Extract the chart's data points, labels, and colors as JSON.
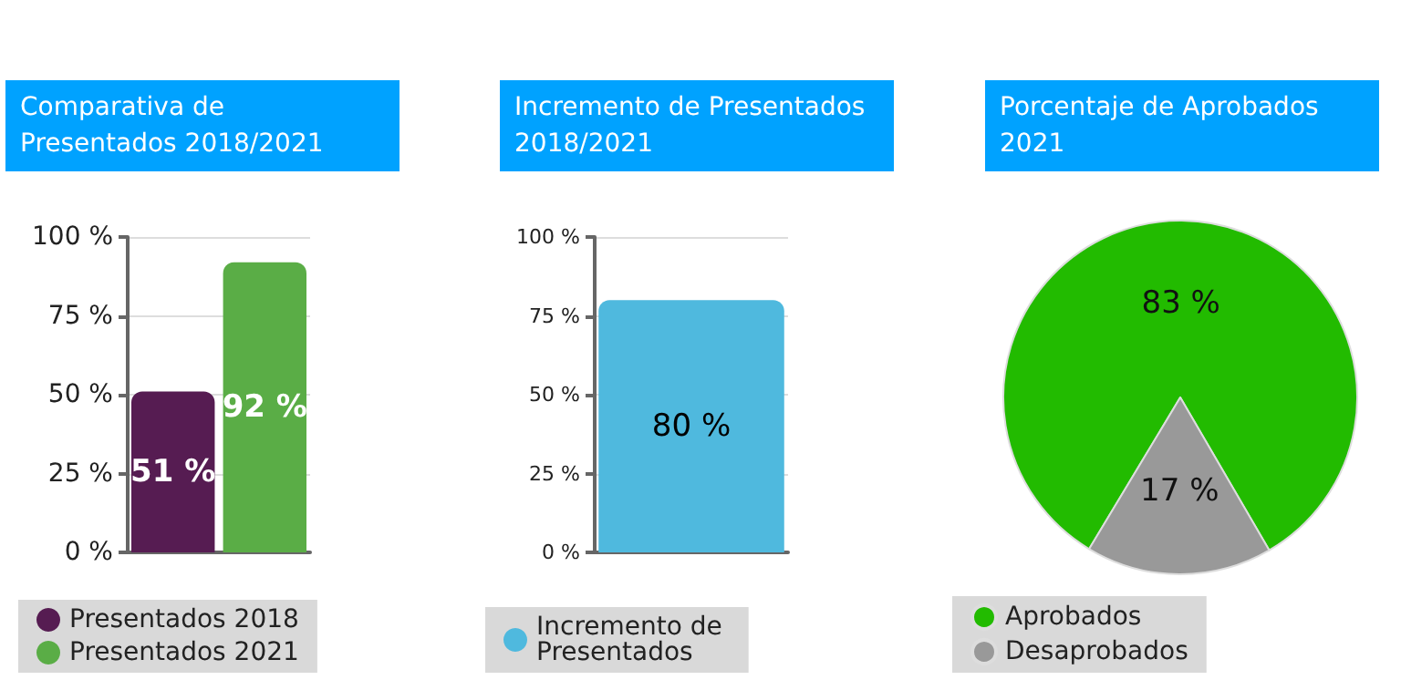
{
  "chart_data": [
    {
      "type": "bar",
      "title": "Comparativa de Presentados 2018/2021",
      "categories": [
        null
      ],
      "series": [
        {
          "name": "Presentados 2018",
          "color": "#561c52",
          "values": [
            51
          ],
          "value_labels": [
            "51 %"
          ]
        },
        {
          "name": "Presentados 2021",
          "color": "#5aad46",
          "values": [
            92
          ],
          "value_labels": [
            "92 %"
          ]
        }
      ],
      "ylim": [
        0,
        100
      ],
      "yticks": [
        {
          "value": 0,
          "label": "0 %"
        },
        {
          "value": 25,
          "label": "25 %"
        },
        {
          "value": 50,
          "label": "50 %"
        },
        {
          "value": 75,
          "label": "75 %"
        },
        {
          "value": 100,
          "label": "100 %"
        }
      ],
      "grid": "y",
      "legend": "bottom"
    },
    {
      "type": "bar",
      "title": "Incremento de Presentados 2018/2021",
      "categories": [
        null
      ],
      "series": [
        {
          "name": "Incremento de Presentados",
          "color": "#4fb9de",
          "values": [
            80
          ],
          "value_labels": [
            "80 %"
          ]
        }
      ],
      "ylim": [
        0,
        100
      ],
      "yticks": [
        {
          "value": 0,
          "label": "0 %"
        },
        {
          "value": 25,
          "label": "25 %"
        },
        {
          "value": 50,
          "label": "50 %"
        },
        {
          "value": 75,
          "label": "75 %"
        },
        {
          "value": 100,
          "label": "100 %"
        }
      ],
      "grid": "y",
      "legend": "bottom"
    },
    {
      "type": "pie",
      "title": "Porcentaje de Aprobados 2021",
      "categories": [
        "Aprobados",
        "Desaprobados"
      ],
      "values": [
        83,
        17
      ],
      "colors": [
        "#22bb00",
        "#999999"
      ],
      "value_labels": [
        "83 %",
        "17 %"
      ],
      "legend": "bottom"
    }
  ]
}
